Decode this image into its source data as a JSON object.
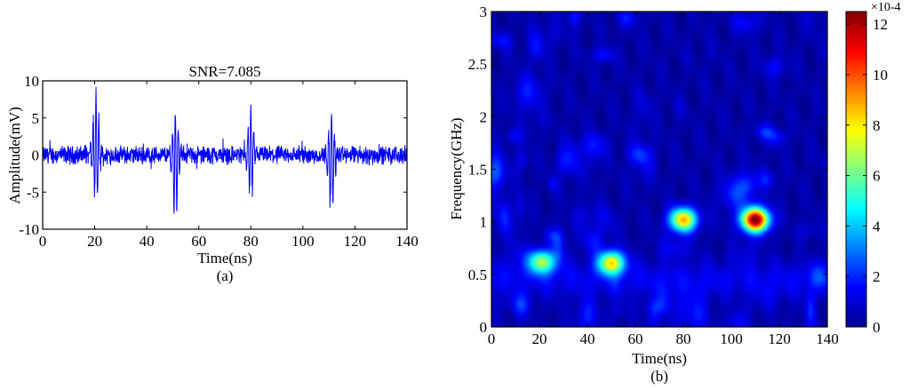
{
  "chart_data": [
    {
      "type": "line",
      "title": "SNR=7.085",
      "xlabel": "Time(ns)",
      "ylabel": "Amplitude(mV)",
      "caption": "(a)",
      "xlim": [
        0,
        140
      ],
      "ylim": [
        -10,
        10
      ],
      "xticks": [
        0,
        20,
        40,
        60,
        80,
        100,
        120,
        140
      ],
      "yticks": [
        -10,
        -5,
        0,
        5,
        10
      ],
      "line_color": "#0000ff",
      "noise_amplitude_mV": 1.0,
      "pulses": [
        {
          "t": 20.5,
          "peak": 8.5,
          "trough": -6.5
        },
        {
          "t": 51.0,
          "peak": 6.0,
          "trough": -8.8
        },
        {
          "t": 80.0,
          "peak": 6.5,
          "trough": -6.0
        },
        {
          "t": 111.0,
          "peak": 5.0,
          "trough": -7.8
        }
      ]
    },
    {
      "type": "heatmap",
      "xlabel": "Time(ns)",
      "ylabel": "Frequency(GHz)",
      "caption": "(b)",
      "xlim": [
        0,
        140
      ],
      "ylim": [
        0,
        3
      ],
      "xticks": [
        0,
        20,
        40,
        60,
        80,
        100,
        120,
        140
      ],
      "yticks": [
        0,
        0.5,
        1,
        1.5,
        2,
        2.5,
        3
      ],
      "colorbar": {
        "multiplier_label": "×10-4",
        "ticks": [
          0,
          2,
          4,
          6,
          8,
          10,
          12
        ],
        "range": [
          0,
          12.5
        ],
        "colormap": "jet"
      },
      "hotspots": [
        {
          "t": 21,
          "f": 0.62,
          "value": 6.2
        },
        {
          "t": 50,
          "f": 0.61,
          "value": 7.5
        },
        {
          "t": 80,
          "f": 1.02,
          "value": 8.3
        },
        {
          "t": 110,
          "f": 1.02,
          "value": 12.3
        }
      ],
      "background_level": 0.8
    }
  ]
}
